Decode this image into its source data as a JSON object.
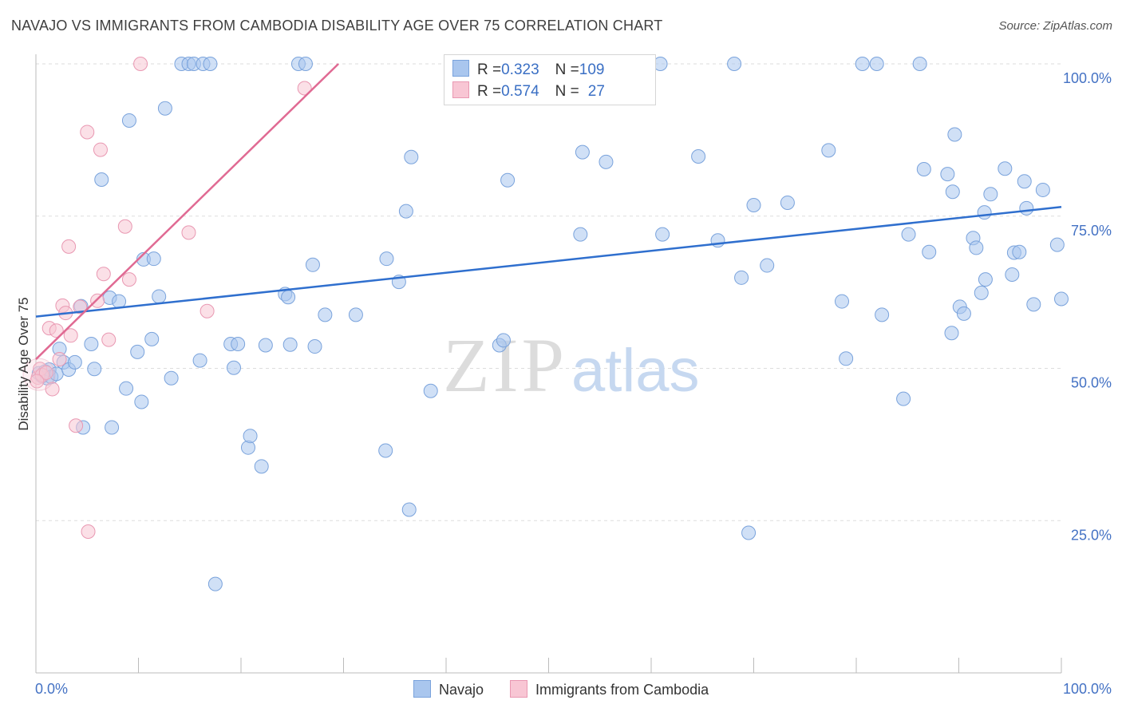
{
  "header": {
    "title": "NAVAJO VS IMMIGRANTS FROM CAMBODIA DISABILITY AGE OVER 75 CORRELATION CHART",
    "source": "Source: ZipAtlas.com"
  },
  "watermark": {
    "zip": "ZIP",
    "atlas": "atlas"
  },
  "legend": {
    "rows": [
      {
        "r_label": "R = ",
        "r_value": "0.323",
        "n_label": "N = ",
        "n_value": "109",
        "color": "#a9c6ee"
      },
      {
        "r_label": "R = ",
        "r_value": "0.574",
        "n_label": "N = ",
        "n_value": "27",
        "color": "#f6b9cb"
      }
    ]
  },
  "bottom_legend": [
    {
      "label": "Navajo",
      "color": "#a9c6ee",
      "border": "#7aa3dc"
    },
    {
      "label": "Immigrants from Cambodia",
      "color": "#f8c6d4",
      "border": "#e998b2"
    }
  ],
  "colors": {
    "navajo_fill": "#a9c6ee",
    "navajo_stroke": "#7aa3dc",
    "navajo_line": "#2f6fce",
    "cambodia_fill": "#f8c6d4",
    "cambodia_stroke": "#e998b2",
    "cambodia_line": "#e06a93",
    "grid": "#dddddd",
    "tick_text": "#4472c4"
  },
  "chart_data": {
    "type": "scatter",
    "title": "NAVAJO VS IMMIGRANTS FROM CAMBODIA DISABILITY AGE OVER 75 CORRELATION CHART",
    "xlabel": "",
    "ylabel": "Disability Age Over 75",
    "xlim": [
      0,
      100
    ],
    "ylim": [
      0,
      100
    ],
    "x_tick_labels": [
      "0.0%",
      "100.0%"
    ],
    "y_tick_labels": [
      "25.0%",
      "50.0%",
      "75.0%",
      "100.0%"
    ],
    "y_ticks": [
      25,
      50,
      75,
      100
    ],
    "grid": true,
    "legend_position": "top-center",
    "series": [
      {
        "name": "Navajo",
        "r": 0.323,
        "n": 109,
        "trend": {
          "x": [
            0,
            100
          ],
          "y": [
            58.5,
            76.5
          ]
        },
        "points": [
          [
            0.3,
            49.2
          ],
          [
            0.6,
            48.7
          ],
          [
            0.9,
            49.5
          ],
          [
            1.1,
            48.4
          ],
          [
            1.3,
            49.8
          ],
          [
            1.5,
            48.6
          ],
          [
            2.0,
            49.1
          ],
          [
            2.3,
            53.2
          ],
          [
            2.7,
            51.0
          ],
          [
            3.2,
            49.8
          ],
          [
            3.8,
            51.0
          ],
          [
            4.4,
            60.2
          ],
          [
            4.6,
            40.3
          ],
          [
            5.4,
            54.0
          ],
          [
            5.7,
            49.9
          ],
          [
            6.4,
            81.0
          ],
          [
            7.2,
            61.6
          ],
          [
            7.4,
            40.3
          ],
          [
            8.1,
            61.0
          ],
          [
            8.8,
            46.7
          ],
          [
            9.1,
            90.7
          ],
          [
            9.9,
            52.7
          ],
          [
            10.3,
            44.5
          ],
          [
            10.5,
            67.9
          ],
          [
            11.3,
            54.8
          ],
          [
            11.5,
            68.0
          ],
          [
            12.0,
            61.8
          ],
          [
            12.6,
            92.7
          ],
          [
            13.2,
            48.4
          ],
          [
            14.2,
            100
          ],
          [
            14.9,
            100
          ],
          [
            15.4,
            100
          ],
          [
            16.0,
            51.3
          ],
          [
            16.3,
            100
          ],
          [
            17.0,
            100
          ],
          [
            17.5,
            14.6
          ],
          [
            19.0,
            54.0
          ],
          [
            19.3,
            50.1
          ],
          [
            19.7,
            54.0
          ],
          [
            20.7,
            37.0
          ],
          [
            20.9,
            38.9
          ],
          [
            22.0,
            33.9
          ],
          [
            22.4,
            53.8
          ],
          [
            24.3,
            62.2
          ],
          [
            24.6,
            61.7
          ],
          [
            24.8,
            53.9
          ],
          [
            25.6,
            100
          ],
          [
            26.3,
            100
          ],
          [
            27.0,
            67.0
          ],
          [
            27.2,
            53.6
          ],
          [
            28.2,
            58.8
          ],
          [
            31.2,
            58.8
          ],
          [
            34.1,
            36.5
          ],
          [
            34.2,
            68.0
          ],
          [
            35.4,
            64.2
          ],
          [
            36.1,
            75.8
          ],
          [
            36.4,
            26.8
          ],
          [
            36.6,
            84.7
          ],
          [
            38.5,
            46.3
          ],
          [
            45.2,
            53.8
          ],
          [
            45.6,
            54.6
          ],
          [
            46.0,
            80.9
          ],
          [
            53.1,
            72.0
          ],
          [
            53.3,
            85.5
          ],
          [
            55.6,
            83.9
          ],
          [
            58.6,
            100
          ],
          [
            60.9,
            100
          ],
          [
            61.1,
            72.0
          ],
          [
            64.6,
            84.8
          ],
          [
            66.5,
            71.0
          ],
          [
            68.1,
            100
          ],
          [
            68.8,
            64.9
          ],
          [
            69.5,
            23.0
          ],
          [
            70.0,
            76.8
          ],
          [
            71.3,
            66.9
          ],
          [
            73.3,
            77.2
          ],
          [
            77.3,
            85.8
          ],
          [
            78.6,
            61.0
          ],
          [
            79.0,
            51.6
          ],
          [
            80.6,
            100
          ],
          [
            82.0,
            100
          ],
          [
            82.5,
            58.8
          ],
          [
            84.6,
            45.0
          ],
          [
            85.1,
            72.0
          ],
          [
            86.2,
            100
          ],
          [
            86.6,
            82.7
          ],
          [
            87.1,
            69.1
          ],
          [
            88.9,
            81.9
          ],
          [
            89.3,
            55.8
          ],
          [
            89.4,
            79.0
          ],
          [
            89.6,
            88.4
          ],
          [
            90.1,
            60.1
          ],
          [
            90.5,
            59.0
          ],
          [
            91.4,
            71.4
          ],
          [
            91.7,
            69.8
          ],
          [
            92.2,
            62.4
          ],
          [
            92.5,
            75.6
          ],
          [
            92.6,
            64.6
          ],
          [
            93.1,
            78.6
          ],
          [
            94.5,
            82.8
          ],
          [
            95.2,
            65.4
          ],
          [
            95.4,
            69.0
          ],
          [
            95.9,
            69.1
          ],
          [
            96.4,
            80.7
          ],
          [
            96.6,
            76.3
          ],
          [
            97.3,
            60.5
          ],
          [
            98.2,
            79.3
          ],
          [
            99.6,
            70.3
          ],
          [
            100.0,
            61.4
          ]
        ]
      },
      {
        "name": "Immigrants from Cambodia",
        "r": 0.574,
        "n": 27,
        "trend": {
          "x": [
            0,
            29.5
          ],
          "y": [
            51.5,
            100
          ]
        },
        "points": [
          [
            0.2,
            48.5
          ],
          [
            0.4,
            49.9
          ],
          [
            0.6,
            48.9
          ],
          [
            1.0,
            49.3
          ],
          [
            1.3,
            56.6
          ],
          [
            1.6,
            46.6
          ],
          [
            2.0,
            56.2
          ],
          [
            2.3,
            51.5
          ],
          [
            2.6,
            60.3
          ],
          [
            2.9,
            59.1
          ],
          [
            3.2,
            70.0
          ],
          [
            3.4,
            55.4
          ],
          [
            3.9,
            40.6
          ],
          [
            4.3,
            60.1
          ],
          [
            5.0,
            88.8
          ],
          [
            5.1,
            23.2
          ],
          [
            6.0,
            61.1
          ],
          [
            6.3,
            85.9
          ],
          [
            6.6,
            65.5
          ],
          [
            7.1,
            54.7
          ],
          [
            8.7,
            73.3
          ],
          [
            9.1,
            64.6
          ],
          [
            10.2,
            100
          ],
          [
            14.9,
            72.3
          ],
          [
            16.7,
            59.4
          ],
          [
            26.2,
            96.0
          ],
          [
            0.1,
            47.9
          ]
        ]
      }
    ]
  }
}
